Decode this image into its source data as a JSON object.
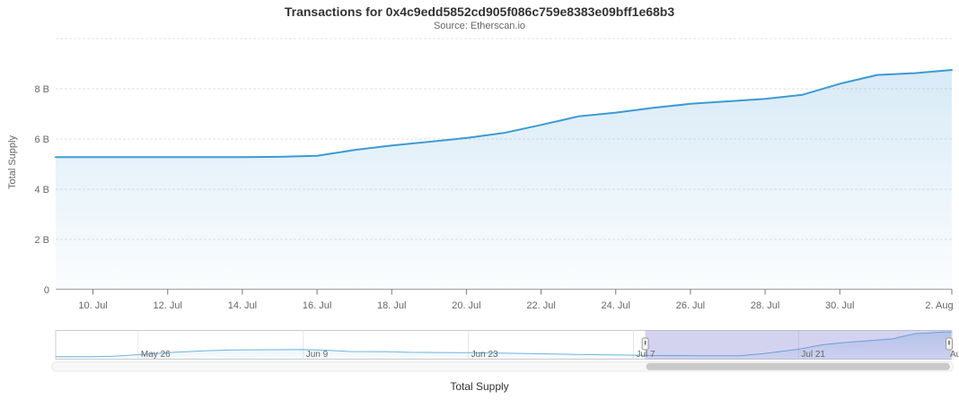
{
  "header": {
    "title": "Transactions for 0x4c9edd5852cd905f086c759e8383e09bff1e68b3",
    "subtitle": "Source: Etherscan.io"
  },
  "legend": {
    "items": [
      {
        "label": "Total Supply"
      }
    ]
  },
  "colors": {
    "series_line": "#3d9ad5",
    "area_fill": "rgba(61,153,213,0.20)",
    "gridline": "#e2e2e2",
    "axis_line": "#a0a0a0",
    "tick_mark": "#757575",
    "axis_label": "#666666",
    "title_text": "#333333",
    "navigator_line": "#6fb4de",
    "navigator_mask": "rgba(108,110,205,0.30)",
    "navigator_outline": "#cccccc",
    "navigator_gridline": "#e6e6e6",
    "handle_fill": "#f2f2f2",
    "handle_stroke": "#999999",
    "handle_grip": "#666666",
    "scrollbar_track": "#f7f7f7",
    "scrollbar_track_border": "#ebebeb",
    "scrollbar_thumb": "#c9c9c9"
  },
  "chart_data": {
    "type": "area",
    "title": "Transactions for 0x4c9edd5852cd905f086c759e8383e09bff1e68b3",
    "subtitle": "Source: Etherscan.io",
    "xlabel": "",
    "ylabel": "Total Supply",
    "unit": "B",
    "ylim": [
      0,
      10
    ],
    "grid": "dashed-horizontal",
    "legend_position": "bottom-center",
    "yticks": [
      {
        "value": 0,
        "label": "0"
      },
      {
        "value": 2,
        "label": "2 B"
      },
      {
        "value": 4,
        "label": "4 B"
      },
      {
        "value": 6,
        "label": "6 B"
      },
      {
        "value": 8,
        "label": "8 B"
      },
      {
        "value": 10,
        "label": ""
      }
    ],
    "xticks": [
      {
        "i": 1,
        "label": "10. Jul"
      },
      {
        "i": 3,
        "label": "12. Jul"
      },
      {
        "i": 5,
        "label": "14. Jul"
      },
      {
        "i": 7,
        "label": "16. Jul"
      },
      {
        "i": 9,
        "label": "18. Jul"
      },
      {
        "i": 11,
        "label": "20. Jul"
      },
      {
        "i": 13,
        "label": "22. Jul"
      },
      {
        "i": 15,
        "label": "24. Jul"
      },
      {
        "i": 17,
        "label": "26. Jul"
      },
      {
        "i": 19,
        "label": "28. Jul"
      },
      {
        "i": 21,
        "label": "30. Jul"
      },
      {
        "i": 24,
        "label": "2. Aug"
      }
    ],
    "series": [
      {
        "name": "Total Supply",
        "dates": [
          "Jul 9",
          "Jul 10",
          "Jul 11",
          "Jul 12",
          "Jul 13",
          "Jul 14",
          "Jul 15",
          "Jul 16",
          "Jul 17",
          "Jul 18",
          "Jul 19",
          "Jul 20",
          "Jul 21",
          "Jul 22",
          "Jul 23",
          "Jul 24",
          "Jul 25",
          "Jul 26",
          "Jul 27",
          "Jul 28",
          "Jul 29",
          "Jul 30",
          "Jul 31",
          "Aug 1",
          "Aug 2"
        ],
        "values": [
          5.28,
          5.28,
          5.28,
          5.28,
          5.28,
          5.28,
          5.29,
          5.33,
          5.56,
          5.74,
          5.89,
          6.04,
          6.24,
          6.56,
          6.9,
          7.05,
          7.24,
          7.4,
          7.5,
          7.6,
          7.76,
          8.2,
          8.55,
          8.62,
          8.75
        ]
      }
    ],
    "navigator": {
      "range_days": 76,
      "ylim": [
        4.8,
        9.0
      ],
      "gridlines": [
        {
          "t": 7,
          "label": "May 26"
        },
        {
          "t": 21,
          "label": "Jun 9"
        },
        {
          "t": 35,
          "label": "Jun 23"
        },
        {
          "t": 49,
          "label": "Jul 7"
        },
        {
          "t": 63,
          "label": "Jul 21"
        },
        {
          "t": 77,
          "label": "Au"
        }
      ],
      "selection": {
        "from_t": 50,
        "to_t": 76
      },
      "series": {
        "t": [
          0,
          3,
          5,
          7,
          10,
          13,
          15,
          21,
          23,
          25,
          28,
          30,
          35,
          40,
          44,
          48,
          51,
          55,
          58,
          60,
          63,
          65,
          67,
          69,
          71,
          72,
          73,
          74,
          75,
          76
        ],
        "values": [
          5.15,
          5.17,
          5.22,
          5.45,
          5.8,
          6.05,
          6.15,
          6.2,
          6.1,
          5.92,
          5.9,
          5.8,
          5.75,
          5.62,
          5.5,
          5.4,
          5.32,
          5.28,
          5.3,
          5.6,
          6.24,
          6.9,
          7.24,
          7.5,
          7.76,
          8.2,
          8.55,
          8.62,
          8.75,
          8.78
        ]
      }
    }
  }
}
